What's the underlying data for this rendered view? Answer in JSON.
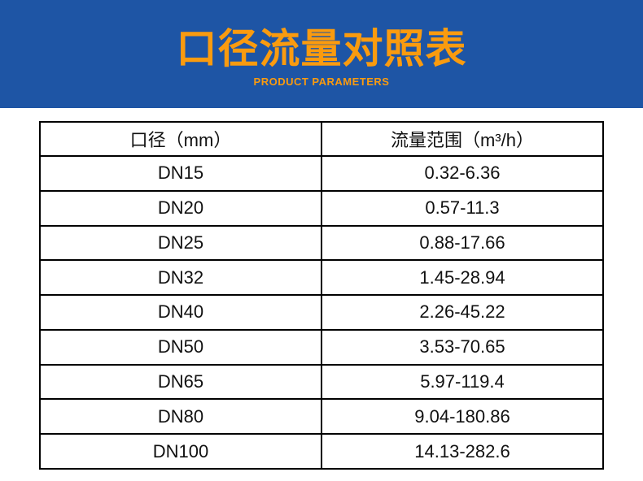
{
  "banner": {
    "title": "口径流量对照表",
    "subtitle": "PRODUCT PARAMETERS",
    "bg_color": "#1E55A5",
    "text_color": "#FA9B0F"
  },
  "table": {
    "columns": [
      "口径（mm）",
      "流量范围（m³/h）"
    ],
    "rows": [
      [
        "DN15",
        "0.32-6.36"
      ],
      [
        "DN20",
        "0.57-11.3"
      ],
      [
        "DN25",
        "0.88-17.66"
      ],
      [
        "DN32",
        "1.45-28.94"
      ],
      [
        "DN40",
        "2.26-45.22"
      ],
      [
        "DN50",
        "3.53-70.65"
      ],
      [
        "DN65",
        "5.97-119.4"
      ],
      [
        "DN80",
        "9.04-180.86"
      ],
      [
        "DN100",
        "14.13-282.6"
      ]
    ],
    "border_color": "#000000",
    "text_color": "#111111"
  }
}
